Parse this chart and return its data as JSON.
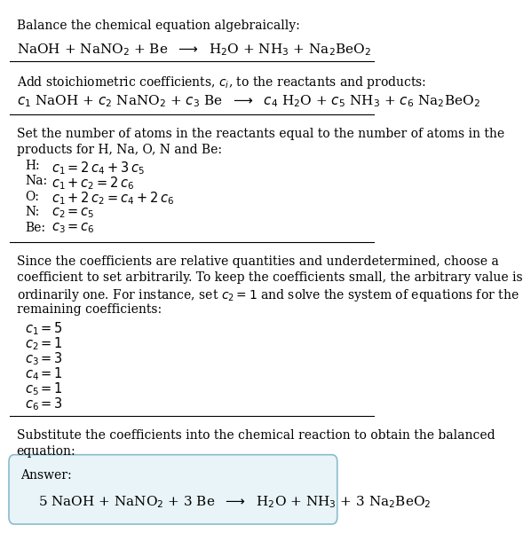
{
  "title_line": "Balance the chemical equation algebraically:",
  "eq1": "NaOH + NaNO$_2$ + Be  $\\longrightarrow$  H$_2$O + NH$_3$ + Na$_2$BeO$_2$",
  "section2_intro": "Add stoichiometric coefficients, $c_i$, to the reactants and products:",
  "eq2": "$c_1$ NaOH + $c_2$ NaNO$_2$ + $c_3$ Be  $\\longrightarrow$  $c_4$ H$_2$O + $c_5$ NH$_3$ + $c_6$ Na$_2$BeO$_2$",
  "section3_intro_1": "Set the number of atoms in the reactants equal to the number of atoms in the",
  "section3_intro_2": "products for H, Na, O, N and Be:",
  "equations": [
    [
      "H:",
      "$c_1 = 2\\,c_4 + 3\\,c_5$"
    ],
    [
      "Na:",
      "$c_1 + c_2 = 2\\,c_6$"
    ],
    [
      "O:",
      "$c_1 + 2\\,c_2 = c_4 + 2\\,c_6$"
    ],
    [
      "N:",
      "$c_2 = c_5$"
    ],
    [
      "Be:",
      "$c_3 = c_6$"
    ]
  ],
  "section4_intro_1": "Since the coefficients are relative quantities and underdetermined, choose a",
  "section4_intro_2": "coefficient to set arbitrarily. To keep the coefficients small, the arbitrary value is",
  "section4_intro_3": "ordinarily one. For instance, set $c_2 = 1$ and solve the system of equations for the",
  "section4_intro_4": "remaining coefficients:",
  "coefficients": [
    "$c_1 = 5$",
    "$c_2 = 1$",
    "$c_3 = 3$",
    "$c_4 = 1$",
    "$c_5 = 1$",
    "$c_6 = 3$"
  ],
  "section5_intro_1": "Substitute the coefficients into the chemical reaction to obtain the balanced",
  "section5_intro_2": "equation:",
  "answer_label": "Answer:",
  "answer_eq": "5 NaOH + NaNO$_2$ + 3 Be  $\\longrightarrow$  H$_2$O + NH$_3$ + 3 Na$_2$BeO$_2$",
  "bg_color": "#ffffff",
  "answer_box_color": "#e8f4f8",
  "answer_box_edge": "#8bbccc",
  "text_color": "#000000",
  "font_size": 10
}
